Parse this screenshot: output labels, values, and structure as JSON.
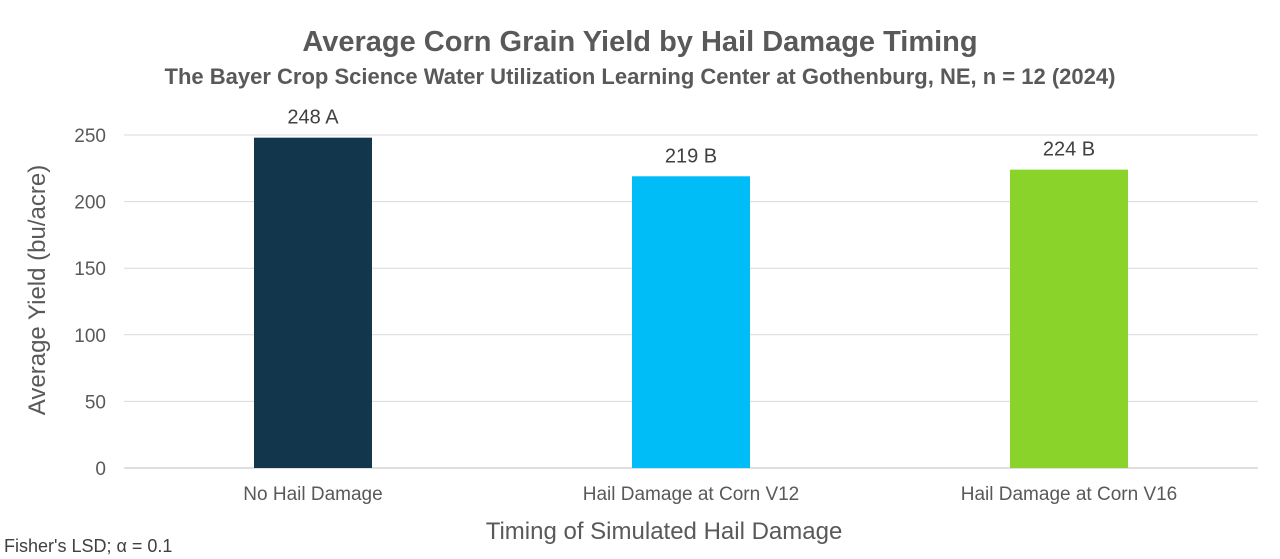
{
  "chart_data": {
    "type": "bar",
    "title": "Average Corn Grain Yield by Hail Damage Timing",
    "subtitle": "The Bayer Crop Science Water Utilization Learning Center at Gothenburg, NE, n = 12 (2024)",
    "xlabel": "Timing of Simulated Hail Damage",
    "ylabel": "Average Yield (bu/acre)",
    "categories": [
      "No Hail Damage",
      "Hail Damage at Corn V12",
      "Hail Damage at Corn V16"
    ],
    "values": [
      248,
      219,
      224
    ],
    "data_labels": [
      "248 A",
      "219 B",
      "224 B"
    ],
    "colors": [
      "#12374D",
      "#00BCF7",
      "#89D32A"
    ],
    "ylim": [
      0,
      250
    ],
    "yticks": [
      0,
      50,
      100,
      150,
      200,
      250
    ],
    "grid": true,
    "legend": "none"
  },
  "footnote": "Fisher's LSD; α = 0.1",
  "colors": {
    "text": "#595959",
    "grid": "#D9D9D9",
    "axis": "#BFBFBF"
  }
}
